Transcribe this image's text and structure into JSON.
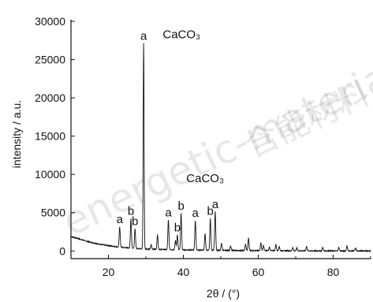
{
  "watermark": {
    "text_latin": "energetic-materials.org.cn",
    "text_cjk": "含能材料"
  },
  "chart_data": {
    "type": "line",
    "xlabel": "2θ / (°)",
    "ylabel": "intensity / a.u.",
    "xlim": [
      10,
      90
    ],
    "ylim": [
      -1000,
      30000
    ],
    "xticks": [
      20,
      40,
      60,
      80
    ],
    "yticks": [
      0,
      5000,
      10000,
      15000,
      20000,
      25000,
      30000
    ],
    "grid": false,
    "legend": "none",
    "baseline": [
      [
        10,
        1900
      ],
      [
        12,
        1600
      ],
      [
        14,
        1300
      ],
      [
        16,
        1050
      ],
      [
        18,
        850
      ],
      [
        20,
        700
      ],
      [
        22,
        560
      ],
      [
        24,
        460
      ],
      [
        26,
        380
      ],
      [
        28,
        320
      ],
      [
        30,
        270
      ],
      [
        35,
        190
      ],
      [
        40,
        140
      ],
      [
        45,
        110
      ],
      [
        50,
        80
      ],
      [
        60,
        45
      ],
      [
        70,
        25
      ],
      [
        80,
        10
      ],
      [
        90,
        0
      ]
    ],
    "peaks": [
      {
        "x": 23.0,
        "y": 2600,
        "label": "a"
      },
      {
        "x": 26.0,
        "y": 3800,
        "label": "b"
      },
      {
        "x": 27.1,
        "y": 2500,
        "label": "b"
      },
      {
        "x": 29.4,
        "y": 26800,
        "label": "a"
      },
      {
        "x": 31.4,
        "y": 550,
        "label": ""
      },
      {
        "x": 33.1,
        "y": 1900,
        "label": ""
      },
      {
        "x": 36.0,
        "y": 3800,
        "label": "a"
      },
      {
        "x": 37.9,
        "y": 1200,
        "label": ""
      },
      {
        "x": 38.4,
        "y": 1900,
        "label": "b"
      },
      {
        "x": 39.4,
        "y": 4700,
        "label": "b"
      },
      {
        "x": 43.2,
        "y": 3800,
        "label": "a"
      },
      {
        "x": 45.8,
        "y": 2100,
        "label": ""
      },
      {
        "x": 47.2,
        "y": 4100,
        "label": "b"
      },
      {
        "x": 48.5,
        "y": 5000,
        "label": "a"
      },
      {
        "x": 50.2,
        "y": 900,
        "label": ""
      },
      {
        "x": 52.6,
        "y": 550,
        "label": ""
      },
      {
        "x": 56.6,
        "y": 800,
        "label": ""
      },
      {
        "x": 57.4,
        "y": 1600,
        "label": ""
      },
      {
        "x": 60.7,
        "y": 1000,
        "label": ""
      },
      {
        "x": 61.4,
        "y": 650,
        "label": ""
      },
      {
        "x": 63.0,
        "y": 450,
        "label": ""
      },
      {
        "x": 64.7,
        "y": 800,
        "label": ""
      },
      {
        "x": 65.6,
        "y": 550,
        "label": ""
      },
      {
        "x": 69.2,
        "y": 400,
        "label": ""
      },
      {
        "x": 70.3,
        "y": 350,
        "label": ""
      },
      {
        "x": 72.9,
        "y": 550,
        "label": ""
      },
      {
        "x": 77.2,
        "y": 450,
        "label": ""
      },
      {
        "x": 81.5,
        "y": 450,
        "label": ""
      },
      {
        "x": 83.7,
        "y": 650,
        "label": ""
      },
      {
        "x": 86.0,
        "y": 350,
        "label": ""
      }
    ],
    "annotations": [
      {
        "text": "CaCO₃",
        "x": 34.5,
        "y": 27800
      },
      {
        "text": "CaCO₃",
        "x": 40.8,
        "y": 9000
      }
    ]
  }
}
